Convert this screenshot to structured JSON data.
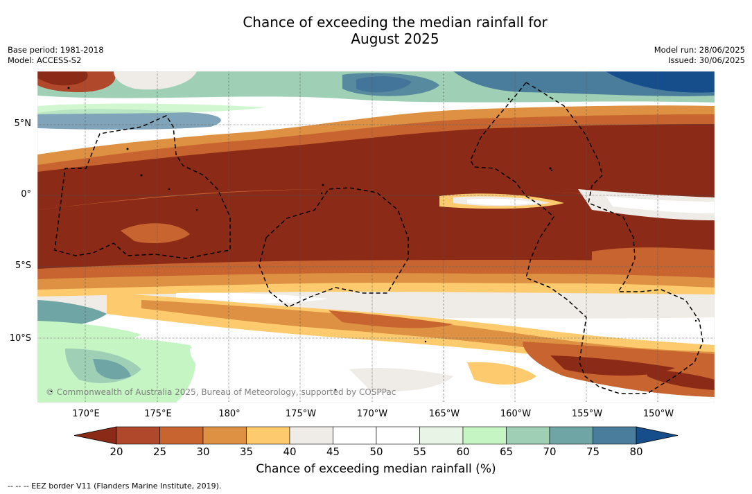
{
  "title_line1": "Chance of exceeding the median rainfall for",
  "title_line2": "August 2025",
  "meta_left": {
    "base_period": "Base period: 1981-2018",
    "model": "Model: ACCESS-S2"
  },
  "meta_right": {
    "model_run": "Model run: 28/06/2025",
    "issued": "Issued: 30/06/2025"
  },
  "lat_labels": [
    "5°N",
    "0°",
    "5°S",
    "10°S"
  ],
  "lon_labels": [
    "170°E",
    "175°E",
    "180°",
    "175°W",
    "170°W",
    "165°W",
    "160°W",
    "155°W",
    "150°W"
  ],
  "colorbar": {
    "ticks": [
      "20",
      "25",
      "30",
      "35",
      "40",
      "45",
      "50",
      "55",
      "60",
      "65",
      "70",
      "75",
      "80"
    ],
    "colors": [
      "#8b2a16",
      "#b0482b",
      "#c8642f",
      "#de9142",
      "#fdcb6e",
      "#efebe6",
      "#ffffff",
      "#ffffff",
      "#e8f5e6",
      "#c6f5c4",
      "#9fd0b6",
      "#6fa5a5",
      "#4a7d9b",
      "#154e8b"
    ],
    "label": "Chance of exceeding median rainfall (%)"
  },
  "copyright": "© Commonwealth of Australia 2025, Bureau of Meteorology, supported by COSPPac",
  "footer": "--  --  -- EEZ border V11 (Flanders Marine Institute, 2019)."
}
